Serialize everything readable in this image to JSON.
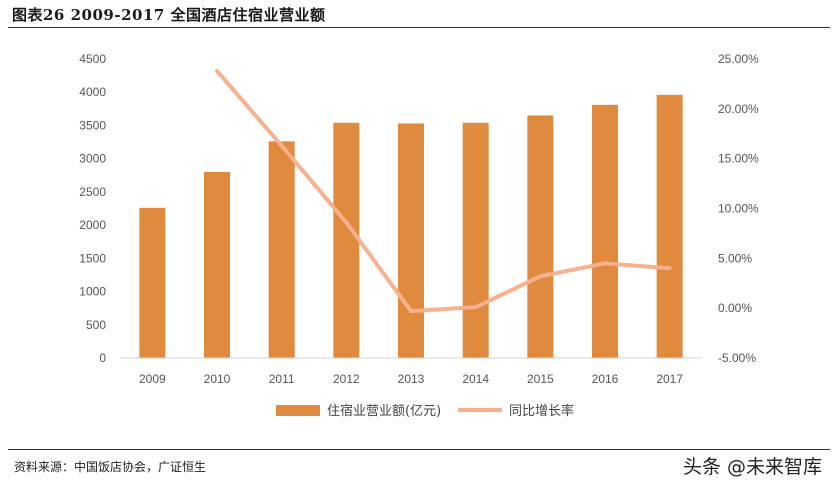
{
  "header": {
    "title": "图表26 2009-2017 全国酒店住宿业营业额"
  },
  "footer": {
    "source": "资料来源：中国饭店协会，广证恒生",
    "watermark": "头条 @未来智库"
  },
  "colors": {
    "bar": "#E08A3E",
    "line": "#F7B18E"
  },
  "chart_data": {
    "type": "bar",
    "categories": [
      "2009",
      "2010",
      "2011",
      "2012",
      "2013",
      "2014",
      "2015",
      "2016",
      "2017"
    ],
    "series": [
      {
        "name": "住宿业营业额(亿元)",
        "type": "bar",
        "axis": "left",
        "values": [
          2260,
          2800,
          3260,
          3540,
          3530,
          3540,
          3650,
          3810,
          3960
        ]
      },
      {
        "name": "同比增长率",
        "type": "line",
        "axis": "right",
        "values": [
          null,
          23.8,
          16.3,
          8.6,
          -0.3,
          0.1,
          3.2,
          4.5,
          4.0
        ]
      }
    ],
    "y_left": {
      "min": 0,
      "max": 4500,
      "ticks": [
        "0",
        "500",
        "1000",
        "1500",
        "2000",
        "2500",
        "3000",
        "3500",
        "4000",
        "4500"
      ]
    },
    "y_right": {
      "min": -5,
      "max": 25,
      "ticks": [
        "-5.00%",
        "0.00%",
        "5.00%",
        "10.00%",
        "15.00%",
        "20.00%",
        "25.00%"
      ]
    },
    "grid": false,
    "legend": "bottom"
  }
}
